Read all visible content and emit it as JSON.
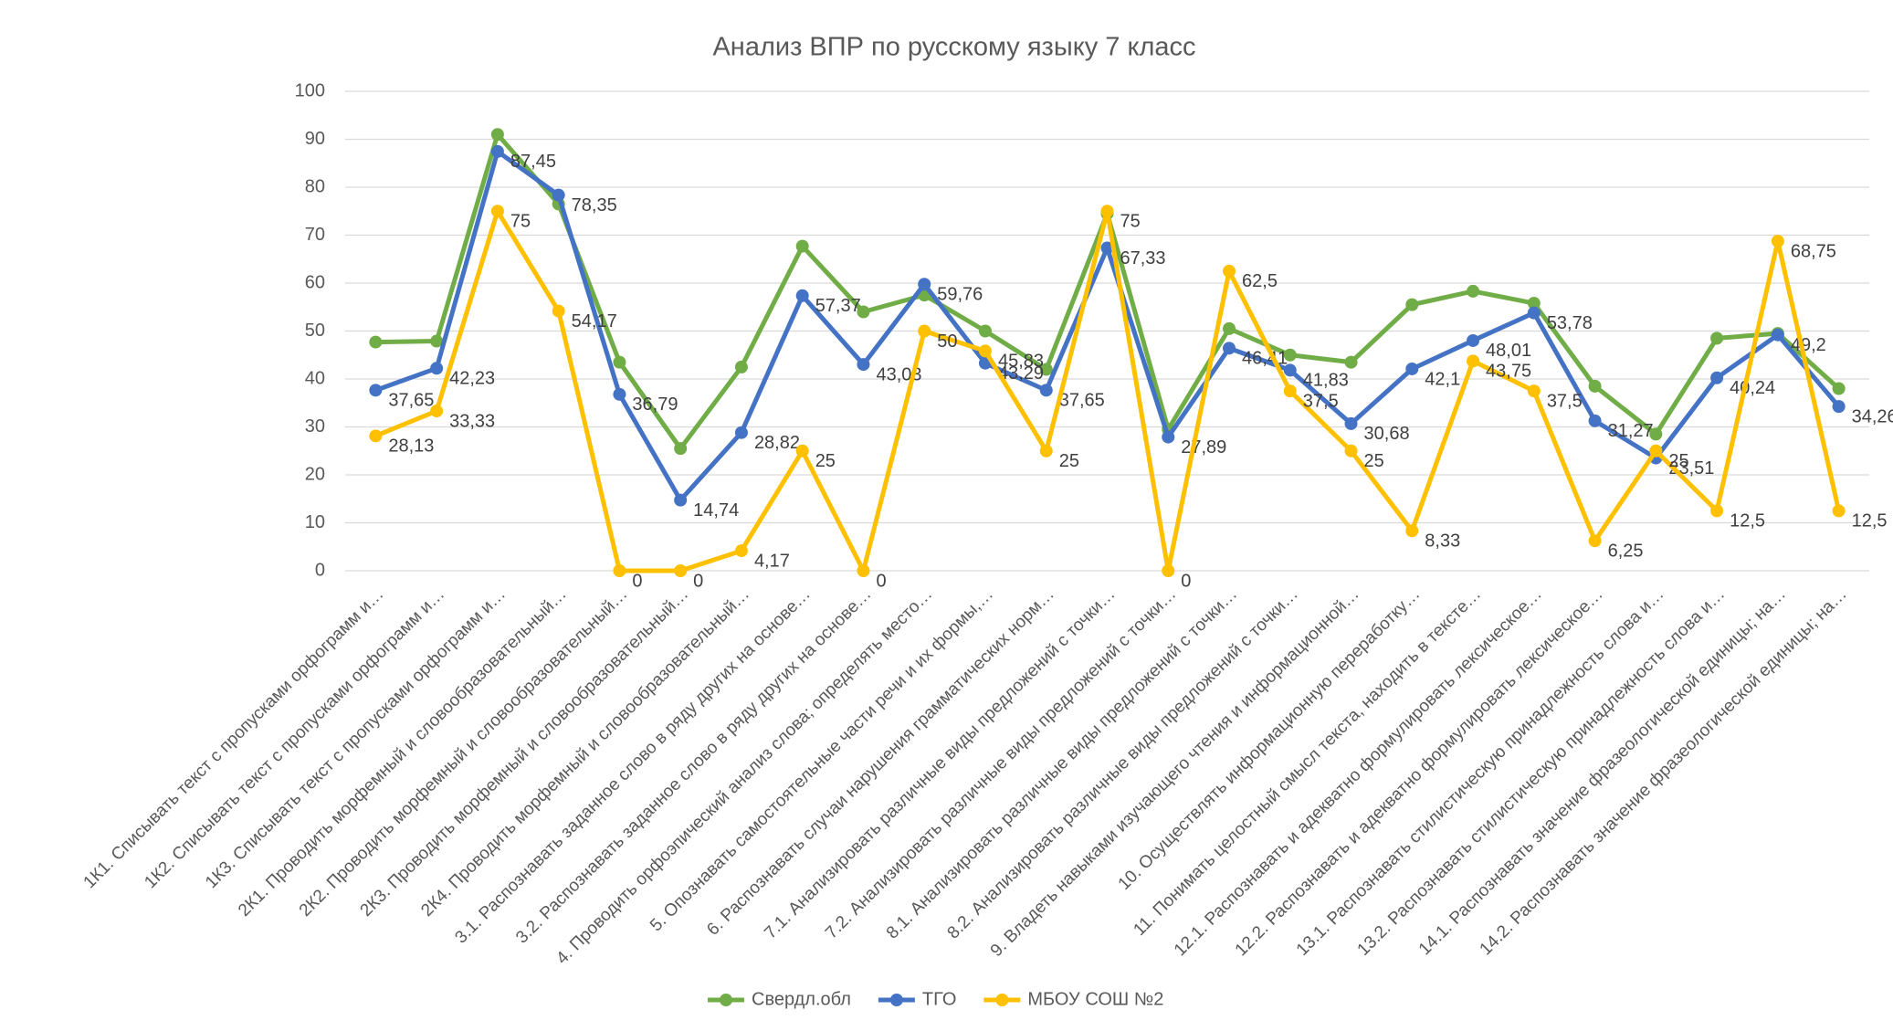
{
  "chart_data": {
    "type": "line",
    "title": "Анализ ВПР по русскому языку 7 класс",
    "categories": [
      "1К1. Списывать текст с пропусками орфограмм и…",
      "1К2. Списывать текст с пропусками орфограмм и…",
      "1К3. Списывать текст с пропусками орфограмм и…",
      "2К1. Проводить морфемный и словообразовательный…",
      "2К2. Проводить морфемный и словообразовательный…",
      "2К3. Проводить морфемный и словообразовательный…",
      "2К4. Проводить морфемный и словообразовательный…",
      "3.1. Распознавать заданное слово в ряду других на основе…",
      "3.2. Распознавать заданное слово в ряду других на основе…",
      "4. Проводить орфоэпический анализ слова; определять место…",
      "5. Опознавать самостоятельные части речи и их формы,…",
      "6. Распознавать случаи нарушения грамматических норм…",
      "7.1. Анализировать различные виды предложений с точки…",
      "7.2. Анализировать различные виды предложений с точки…",
      "8.1. Анализировать различные виды предложений с точки…",
      "8.2. Анализировать различные виды предложений с точки…",
      "9. Владеть навыками изучающего чтения и информационной…",
      "10. Осуществлять информационную переработку…",
      "11. Понимать целостный смысл текста, находить в тексте…",
      "12.1. Распознавать и адекватно формулировать лексическое…",
      "12.2. Распознавать и адекватно формулировать лексическое…",
      "13.1. Распознавать стилистическую принадлежность слова и…",
      "13.2. Распознавать стилистическую принадлежность слова и…",
      "14.1. Распознавать значение фразеологической единицы; на…",
      "14.2. Распознавать значение фразеологической единицы; на…"
    ],
    "series": [
      {
        "name": "Свердл.обл",
        "color": "#70ad47",
        "values": [
          47.7,
          47.9,
          91,
          76.5,
          43.5,
          25.5,
          42.5,
          67.7,
          54,
          57.5,
          50,
          42,
          74.5,
          29.5,
          50.5,
          45,
          43.5,
          55.5,
          58.3,
          55.8,
          38.5,
          28.5,
          48.5,
          49.5,
          38
        ]
      },
      {
        "name": "ТГО",
        "color": "#4472c4",
        "values": [
          37.65,
          42.23,
          87.45,
          78.35,
          36.79,
          14.74,
          28.82,
          57.37,
          43.03,
          59.76,
          43.29,
          37.65,
          67.33,
          27.89,
          46.41,
          41.83,
          30.68,
          42.1,
          48.01,
          53.78,
          31.27,
          23.51,
          40.24,
          49.2,
          34.26
        ],
        "value_labels": [
          "37,65",
          "42,23",
          "87,45",
          "78,35",
          "36,79",
          "14,74",
          "28,82",
          "57,37",
          "43,03",
          "59,76",
          "43,29",
          "37,65",
          "67,33",
          "27,89",
          "46,41",
          "41,83",
          "30,68",
          "42,1",
          "48,01",
          "53,78",
          "31,27",
          "23,51",
          "40,24",
          "49,2",
          "34,26"
        ]
      },
      {
        "name": "МБОУ СОШ №2",
        "color": "#ffc000",
        "values": [
          28.13,
          33.33,
          75,
          54.17,
          0,
          0,
          4.17,
          25,
          0,
          50,
          45.83,
          25,
          75,
          0,
          62.5,
          37.5,
          25,
          8.33,
          43.75,
          37.5,
          6.25,
          25,
          12.5,
          68.75,
          12.5
        ],
        "value_labels": [
          "28,13",
          "33,33",
          "75",
          "54,17",
          "0",
          "0",
          "4,17",
          "25",
          "0",
          "50",
          "45,83",
          "25",
          "75",
          "0",
          "62,5",
          "37,5",
          "25",
          "8,33",
          "43,75",
          "37,5",
          "6,25",
          "25",
          "12,5",
          "68,75",
          "12,5"
        ]
      }
    ],
    "ylim": [
      0,
      100
    ],
    "yticks": [
      0,
      10,
      20,
      30,
      40,
      50,
      60,
      70,
      80,
      90,
      100
    ],
    "grid": true,
    "legend": "bottom"
  }
}
